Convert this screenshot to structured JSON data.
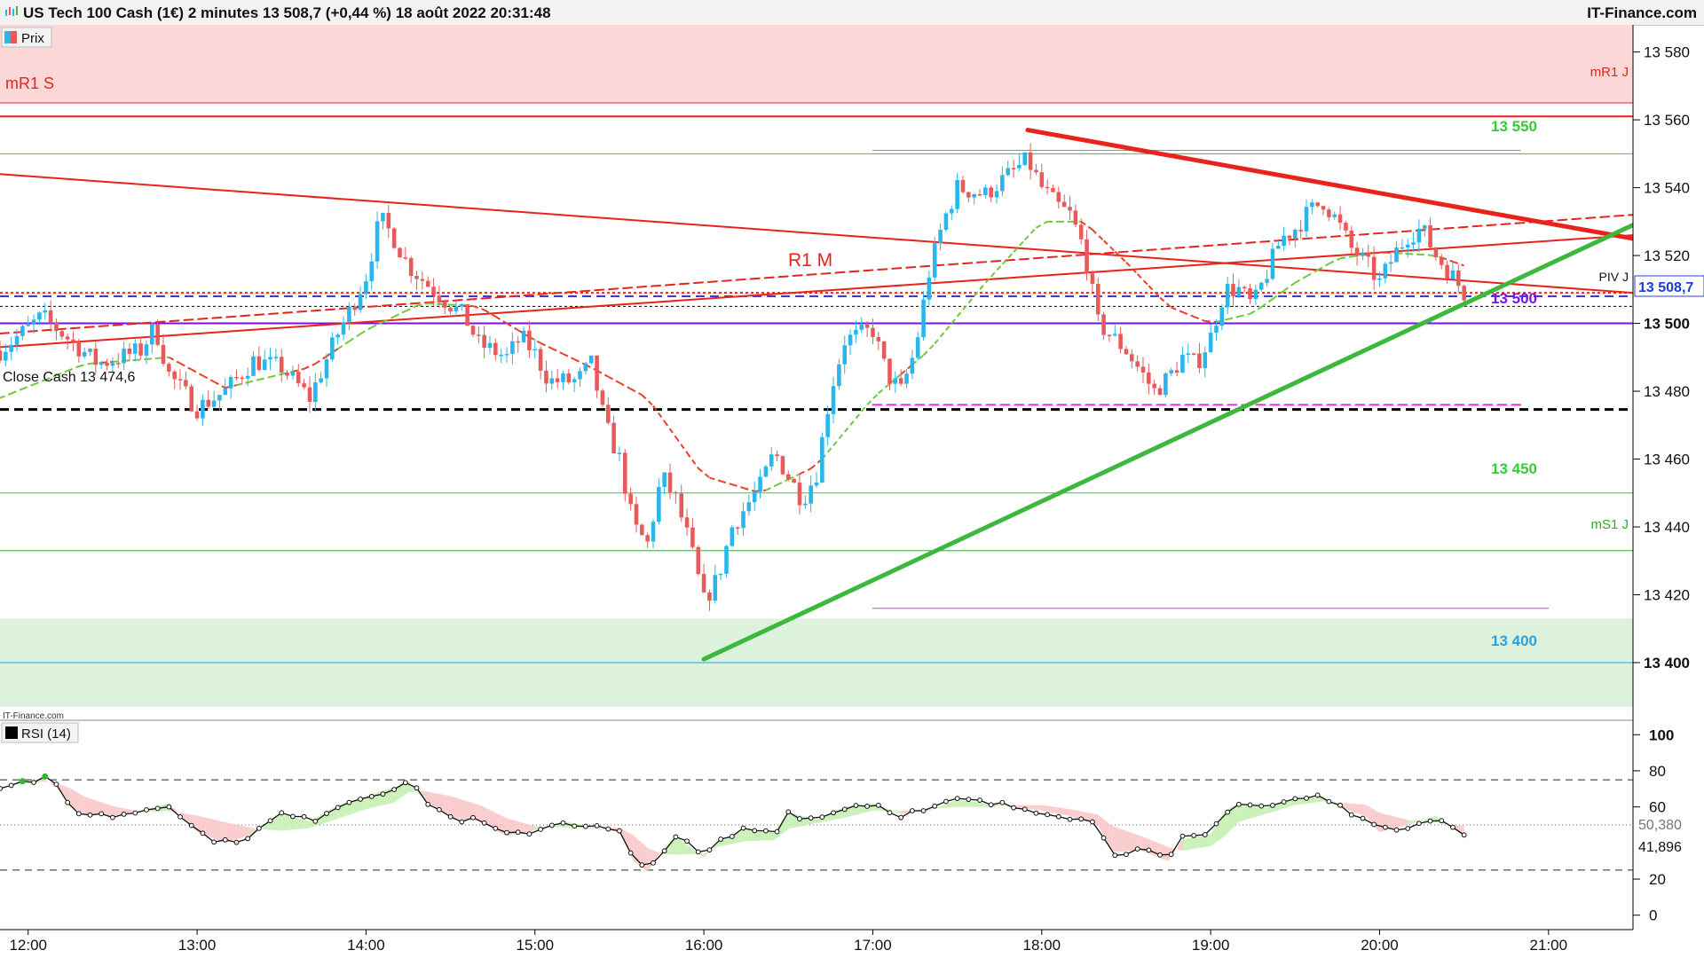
{
  "header": {
    "title": "US Tech 100 Cash (1€) 2 minutes 13 508,7 (+0,44 %) 18 août 2022 20:31:48",
    "brand": "IT-Finance.com"
  },
  "price_panel": {
    "legend": "Prix",
    "watermark": "IT-Finance.com",
    "current_price_label": "13 508,7",
    "annotations": {
      "mR1S": "mR1 S",
      "mR1J": "mR1 J",
      "mS1J": "mS1 J",
      "PivJ": "PIV J",
      "R1M": "R1 M",
      "close_cash": "Close Cash 13 474,6",
      "lvl_13550": "13 550",
      "lvl_13500": "13 500",
      "lvl_13450": "13 450",
      "lvl_13400": "13 400"
    }
  },
  "rsi_panel": {
    "legend": "RSI (14)",
    "value_label_1": "50,380",
    "value_label_2": "41,896"
  },
  "colors": {
    "bull": "#29b6e8",
    "bear": "#e85a5a",
    "resistance": "#e8231c",
    "support": "#3db83d",
    "pivot": "#7a12e0",
    "green_level": "#33cc33",
    "blue_level": "#29a3e0",
    "magenta": "#e033e0"
  },
  "chart_data": [
    {
      "type": "candlestick",
      "x_range": [
        "11:50",
        "21:30"
      ],
      "y_range": [
        13383,
        13588
      ],
      "x_ticks": [
        "12:00",
        "13:00",
        "14:00",
        "15:00",
        "16:00",
        "17:00",
        "18:00",
        "19:00",
        "20:00",
        "21:00"
      ],
      "y_ticks": [
        13580,
        13560,
        13540,
        13520,
        13500,
        13480,
        13460,
        13440,
        13420,
        13400
      ],
      "y_ticks_bold": [
        13500,
        13400
      ],
      "last_price": 13508.7,
      "close_path": [
        [
          "11:50",
          13492
        ],
        [
          "12:05",
          13502
        ],
        [
          "12:15",
          13495
        ],
        [
          "12:25",
          13488
        ],
        [
          "12:40",
          13492
        ],
        [
          "12:45",
          13499
        ],
        [
          "12:50",
          13485
        ],
        [
          "13:00",
          13475
        ],
        [
          "13:10",
          13480
        ],
        [
          "13:20",
          13489
        ],
        [
          "13:30",
          13487
        ],
        [
          "13:40",
          13478
        ],
        [
          "13:50",
          13497
        ],
        [
          "13:55",
          13505
        ],
        [
          "14:00",
          13514
        ],
        [
          "14:05",
          13531
        ],
        [
          "14:10",
          13525
        ],
        [
          "14:15",
          13517
        ],
        [
          "14:25",
          13509
        ],
        [
          "14:35",
          13502
        ],
        [
          "14:40",
          13494
        ],
        [
          "14:50",
          13490
        ],
        [
          "14:55",
          13496
        ],
        [
          "15:00",
          13491
        ],
        [
          "15:05",
          13483
        ],
        [
          "15:15",
          13483
        ],
        [
          "15:20",
          13488
        ],
        [
          "15:25",
          13470
        ],
        [
          "15:30",
          13460
        ],
        [
          "15:35",
          13440
        ],
        [
          "15:40",
          13435
        ],
        [
          "15:45",
          13455
        ],
        [
          "15:50",
          13448
        ],
        [
          "15:55",
          13435
        ],
        [
          "16:00",
          13418
        ],
        [
          "16:05",
          13425
        ],
        [
          "16:10",
          13440
        ],
        [
          "16:20",
          13452
        ],
        [
          "16:25",
          13462
        ],
        [
          "16:30",
          13455
        ],
        [
          "16:35",
          13448
        ],
        [
          "16:40",
          13456
        ],
        [
          "16:45",
          13480
        ],
        [
          "16:50",
          13495
        ],
        [
          "17:00",
          13498
        ],
        [
          "17:05",
          13485
        ],
        [
          "17:10",
          13480
        ],
        [
          "17:15",
          13492
        ],
        [
          "17:20",
          13515
        ],
        [
          "17:25",
          13530
        ],
        [
          "17:30",
          13540
        ],
        [
          "17:40",
          13538
        ],
        [
          "17:50",
          13545
        ],
        [
          "17:55",
          13548
        ],
        [
          "18:00",
          13540
        ],
        [
          "18:05",
          13535
        ],
        [
          "18:10",
          13532
        ],
        [
          "18:15",
          13522
        ],
        [
          "18:20",
          13500
        ],
        [
          "18:25",
          13496
        ],
        [
          "18:30",
          13492
        ],
        [
          "18:35",
          13486
        ],
        [
          "18:40",
          13480
        ],
        [
          "18:45",
          13484
        ],
        [
          "18:50",
          13490
        ],
        [
          "18:55",
          13488
        ],
        [
          "19:00",
          13496
        ],
        [
          "19:05",
          13510
        ],
        [
          "19:10",
          13510
        ],
        [
          "19:15",
          13505
        ],
        [
          "19:20",
          13515
        ],
        [
          "19:25",
          13525
        ],
        [
          "19:30",
          13528
        ],
        [
          "19:35",
          13533
        ],
        [
          "19:40",
          13536
        ],
        [
          "19:45",
          13530
        ],
        [
          "19:50",
          13522
        ],
        [
          "19:55",
          13518
        ],
        [
          "20:00",
          13512
        ],
        [
          "20:05",
          13520
        ],
        [
          "20:10",
          13526
        ],
        [
          "20:15",
          13528
        ],
        [
          "20:20",
          13520
        ],
        [
          "20:25",
          13515
        ],
        [
          "20:30",
          13509
        ]
      ],
      "rolling_average_path": [
        [
          "11:50",
          13478
        ],
        [
          "12:20",
          13488
        ],
        [
          "12:50",
          13490
        ],
        [
          "13:10",
          13481
        ],
        [
          "13:40",
          13487
        ],
        [
          "14:00",
          13498
        ],
        [
          "14:20",
          13506
        ],
        [
          "14:40",
          13505
        ],
        [
          "15:00",
          13495
        ],
        [
          "15:20",
          13487
        ],
        [
          "15:40",
          13478
        ],
        [
          "16:00",
          13455
        ],
        [
          "16:20",
          13450
        ],
        [
          "16:40",
          13458
        ],
        [
          "17:00",
          13478
        ],
        [
          "17:20",
          13492
        ],
        [
          "17:40",
          13512
        ],
        [
          "18:00",
          13530
        ],
        [
          "18:15",
          13530
        ],
        [
          "18:30",
          13518
        ],
        [
          "18:45",
          13505
        ],
        [
          "19:00",
          13500
        ],
        [
          "19:15",
          13503
        ],
        [
          "19:30",
          13512
        ],
        [
          "19:45",
          13519
        ],
        [
          "20:00",
          13521
        ],
        [
          "20:20",
          13520
        ],
        [
          "20:30",
          13517
        ]
      ],
      "horizontal_levels": [
        {
          "label_key": "mR1S",
          "value": 13565,
          "style": "solid",
          "color": "#e8231c",
          "width": 1
        },
        {
          "label_key": "mR1J",
          "value": 13561,
          "style": "solid",
          "color": "#e8231c",
          "width": 2
        },
        {
          "label_key": "lvl_13550",
          "value": 13550,
          "style": "solid",
          "color": "#33cc33",
          "width": 1
        },
        {
          "label_key": "PivJ",
          "value": 13509,
          "style": "dotted",
          "color": "#e8231c",
          "width": 2
        },
        {
          "label_key": null,
          "value": 13508,
          "style": "dashed",
          "color": "#3a3adb",
          "width": 2
        },
        {
          "label_key": null,
          "value": 13505,
          "style": "dotted",
          "color": "#000000",
          "width": 1
        },
        {
          "label_key": "lvl_13500",
          "value": 13500,
          "style": "solid",
          "color": "#7a12e0",
          "width": 2
        },
        {
          "label_key": "close_cash",
          "value": 13474.6,
          "style": "dashed",
          "color": "#000000",
          "width": 3
        },
        {
          "label_key": "lvl_13450",
          "value": 13450,
          "style": "solid",
          "color": "#33cc33",
          "width": 1
        },
        {
          "label_key": "mS1J",
          "value": 13433,
          "style": "solid",
          "color": "#2ea82e",
          "width": 1
        },
        {
          "label_key": "lvl_13400",
          "value": 13400,
          "style": "solid",
          "color": "#29a3e0",
          "width": 1
        }
      ],
      "zones": [
        {
          "from": 13565,
          "to": 13588,
          "color": "#fcd7d7"
        },
        {
          "from": 13387,
          "to": 13413,
          "color": "#dcf2dc"
        }
      ],
      "segments": [
        {
          "from": [
            "17:00",
            13551
          ],
          "to": [
            "20:50",
            13551
          ],
          "color": "#9090a0",
          "width": 1,
          "style": "solid"
        },
        {
          "from": [
            "17:00",
            13476
          ],
          "to": [
            "20:50",
            13476
          ],
          "color": "#e033e0",
          "width": 2,
          "style": "dashed"
        },
        {
          "from": [
            "17:00",
            13416
          ],
          "to": [
            "21:00",
            13416
          ],
          "color": "#e033e0",
          "width": 1,
          "style": "solid"
        },
        {
          "from": [
            "11:50",
            13544
          ],
          "to": [
            "21:30",
            13509
          ],
          "color": "#e8231c",
          "width": 2,
          "style": "solid"
        },
        {
          "from": [
            "11:50",
            13493
          ],
          "to": [
            "21:30",
            13526
          ],
          "color": "#e8231c",
          "width": 2,
          "style": "solid"
        },
        {
          "from": [
            "11:50",
            13497
          ],
          "to": [
            "21:30",
            13532
          ],
          "color": "#e8231c",
          "width": 2,
          "style": "dashed"
        },
        {
          "from": [
            "17:55",
            13557
          ],
          "to": [
            "21:30",
            13525
          ],
          "color": "#e8231c",
          "width": 5,
          "style": "solid"
        },
        {
          "from": [
            "16:00",
            13401
          ],
          "to": [
            "21:30",
            13529
          ],
          "color": "#3db83d",
          "width": 5,
          "style": "solid"
        }
      ]
    },
    {
      "type": "line",
      "name": "RSI (14)",
      "y_range": [
        -8,
        108
      ],
      "y_ticks": [
        100,
        80,
        60,
        20,
        0
      ],
      "y_ticks_bold": [
        100
      ],
      "reference_lines": [
        75,
        25
      ],
      "signal_line": 50,
      "points": [
        [
          "11:50",
          72
        ],
        [
          "12:00",
          74
        ],
        [
          "12:05",
          76
        ],
        [
          "12:10",
          71
        ],
        [
          "12:15",
          60
        ],
        [
          "12:20",
          56
        ],
        [
          "12:30",
          55
        ],
        [
          "12:40",
          58
        ],
        [
          "12:50",
          62
        ],
        [
          "13:00",
          46
        ],
        [
          "13:10",
          40
        ],
        [
          "13:20",
          45
        ],
        [
          "13:30",
          56
        ],
        [
          "13:40",
          52
        ],
        [
          "13:50",
          61
        ],
        [
          "14:00",
          66
        ],
        [
          "14:10",
          71
        ],
        [
          "14:15",
          74
        ],
        [
          "14:20",
          65
        ],
        [
          "14:30",
          54
        ],
        [
          "14:40",
          52
        ],
        [
          "14:50",
          44
        ],
        [
          "15:00",
          47
        ],
        [
          "15:10",
          52
        ],
        [
          "15:20",
          49
        ],
        [
          "15:30",
          46
        ],
        [
          "15:35",
          30
        ],
        [
          "15:40",
          24
        ],
        [
          "15:45",
          36
        ],
        [
          "15:50",
          44
        ],
        [
          "16:00",
          32
        ],
        [
          "16:05",
          40
        ],
        [
          "16:15",
          48
        ],
        [
          "16:25",
          46
        ],
        [
          "16:30",
          57
        ],
        [
          "16:40",
          53
        ],
        [
          "16:50",
          60
        ],
        [
          "17:00",
          62
        ],
        [
          "17:10",
          56
        ],
        [
          "17:20",
          58
        ],
        [
          "17:30",
          64
        ],
        [
          "17:40",
          62
        ],
        [
          "17:50",
          60
        ],
        [
          "18:00",
          58
        ],
        [
          "18:10",
          55
        ],
        [
          "18:20",
          50
        ],
        [
          "18:25",
          35
        ],
        [
          "18:35",
          36
        ],
        [
          "18:45",
          30
        ],
        [
          "18:50",
          42
        ],
        [
          "19:00",
          45
        ],
        [
          "19:05",
          58
        ],
        [
          "19:10",
          62
        ],
        [
          "19:20",
          60
        ],
        [
          "19:30",
          64
        ],
        [
          "19:40",
          66
        ],
        [
          "19:45",
          60
        ],
        [
          "19:55",
          55
        ],
        [
          "20:00",
          46
        ],
        [
          "20:10",
          50
        ],
        [
          "20:20",
          55
        ],
        [
          "20:25",
          49
        ],
        [
          "20:30",
          44
        ]
      ],
      "current_values": [
        50.38,
        41.896
      ]
    }
  ]
}
